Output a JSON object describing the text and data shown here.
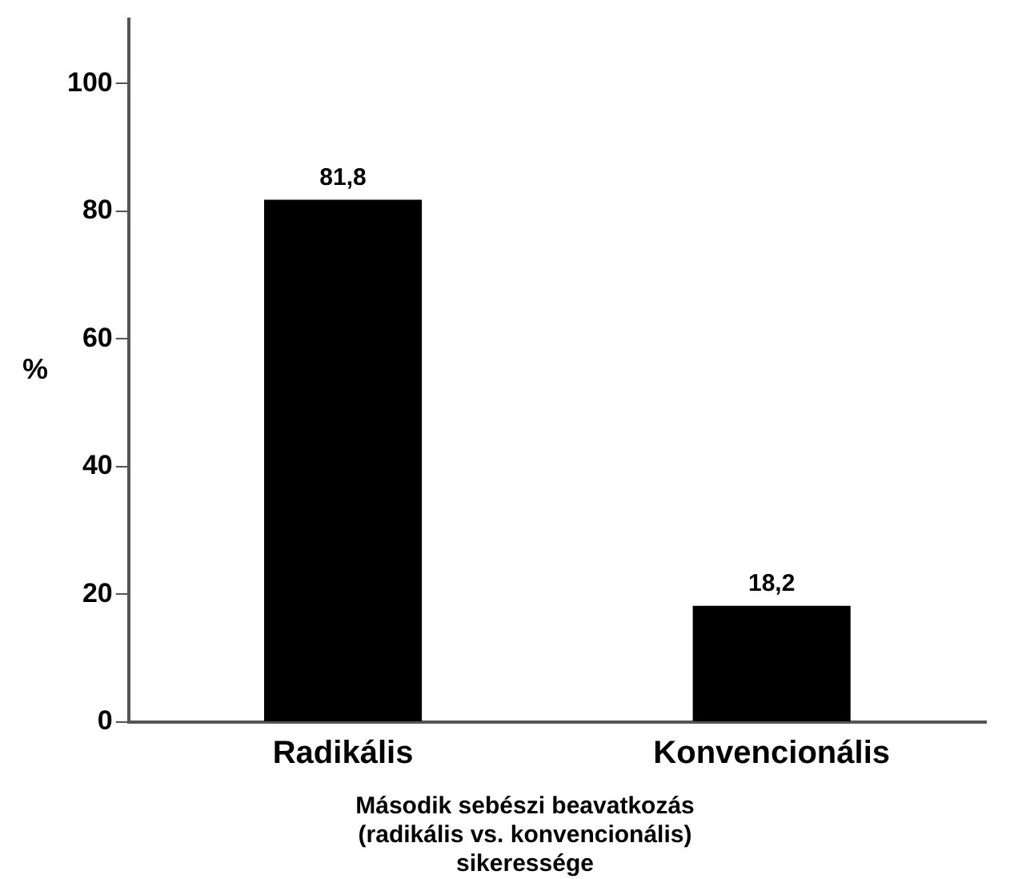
{
  "chart_data": {
    "type": "bar",
    "categories": [
      "Radikális",
      "Konvencionális"
    ],
    "values": [
      81.8,
      18.2
    ],
    "color": "#000000",
    "value_labels": [
      "81,8",
      "18,2"
    ],
    "ylabel": "%",
    "xlabel": "Második sebészi beavatkozás\n(radikális vs. konvencionális)\nsikeressége",
    "ylim": [
      0,
      110
    ],
    "yticks": [
      0,
      20,
      40,
      60,
      80,
      100
    ],
    "grid": false,
    "legend": false
  }
}
